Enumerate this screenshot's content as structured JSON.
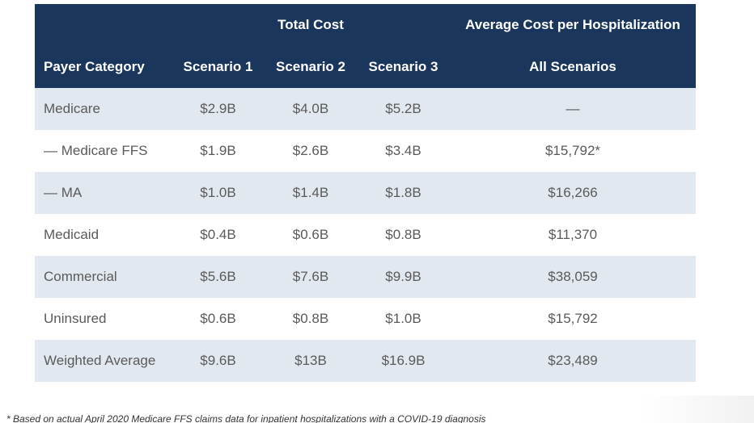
{
  "table": {
    "header_group": {
      "total_cost": "Total Cost",
      "average_cost": "Average Cost per Hospitalization"
    },
    "columns": {
      "payer_category": "Payer Category",
      "scenario_1": "Scenario 1",
      "scenario_2": "Scenario 2",
      "scenario_3": "Scenario 3",
      "all_scenarios": "All Scenarios"
    },
    "rows": [
      {
        "label": "Medicare",
        "s1": "$2.9B",
        "s2": "$4.0B",
        "s3": "$5.2B",
        "avg": "—"
      },
      {
        "label": "— Medicare FFS",
        "s1": "$1.9B",
        "s2": "$2.6B",
        "s3": "$3.4B",
        "avg": "$15,792*"
      },
      {
        "label": "— MA",
        "s1": "$1.0B",
        "s2": "$1.4B",
        "s3": "$1.8B",
        "avg": "$16,266"
      },
      {
        "label": "Medicaid",
        "s1": "$0.4B",
        "s2": "$0.6B",
        "s3": "$0.8B",
        "avg": "$11,370"
      },
      {
        "label": "Commercial",
        "s1": "$5.6B",
        "s2": "$7.6B",
        "s3": "$9.9B",
        "avg": "$38,059"
      },
      {
        "label": "Uninsured",
        "s1": "$0.6B",
        "s2": "$0.8B",
        "s3": "$1.0B",
        "avg": "$15,792"
      },
      {
        "label": "Weighted Average",
        "s1": "$9.6B",
        "s2": "$13B",
        "s3": "$16.9B",
        "avg": "$23,489"
      }
    ]
  },
  "footnote": "* Based on actual April 2020 Medicare FFS claims data for inpatient hospitalizations with a COVID-19 diagnosis",
  "colors": {
    "header_bg": "#1b365d",
    "shaded_row": "#e1e8ef",
    "body_text": "#5a5a5a"
  }
}
